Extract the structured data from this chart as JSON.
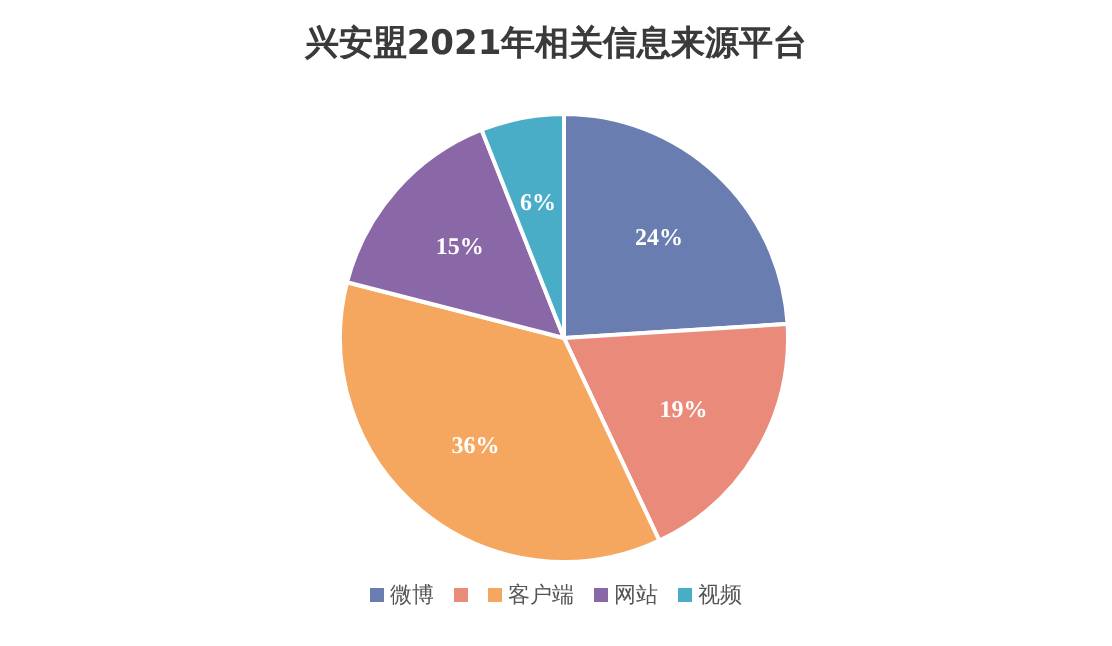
{
  "chart_data": {
    "type": "pie",
    "title": "兴安盟2021年相关信息来源平台",
    "categories": [
      "微博",
      null,
      "客户端",
      "网站",
      "视频"
    ],
    "values": [
      24,
      19,
      36,
      15,
      6
    ],
    "value_labels": [
      "24%",
      "19%",
      "36%",
      "15%",
      "6%"
    ],
    "colors": [
      "#6a7db0",
      "#e98a7b",
      "#f5a760",
      "#8a67a6",
      "#4aadc7"
    ],
    "legend": "bottom"
  }
}
